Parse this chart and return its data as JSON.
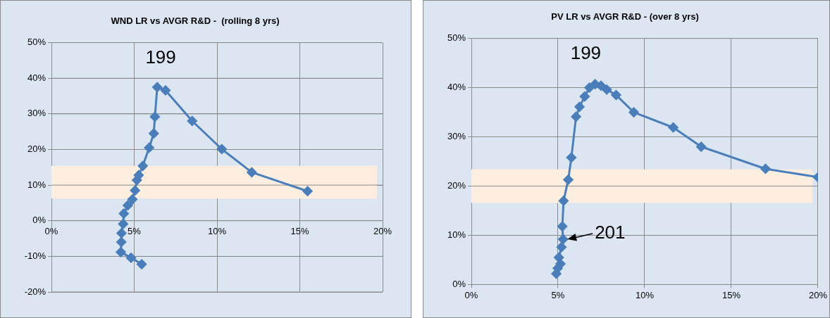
{
  "chart_data": [
    {
      "type": "line",
      "title": "WND LR vs AVGR R&D -  (rolling 8 yrs)",
      "x": [
        5.45,
        4.81,
        4.19,
        4.22,
        4.23,
        4.33,
        4.37,
        4.61,
        4.89,
        5.05,
        5.16,
        5.27,
        5.52,
        5.9,
        6.18,
        6.25,
        6.39,
        6.89,
        8.5,
        10.29,
        12.1,
        15.47
      ],
      "series": [
        {
          "color": "#4a7ebb",
          "values": [
            -12.2,
            -10.4,
            -8.8,
            -6.0,
            -3.5,
            -0.9,
            2.0,
            4.3,
            6.0,
            8.5,
            11.4,
            12.8,
            15.4,
            20.5,
            24.5,
            29.2,
            37.5,
            36.6,
            28.0,
            20.1,
            13.6,
            8.3
          ]
        }
      ],
      "xlim": [
        0,
        20
      ],
      "ylim": [
        -20,
        50
      ],
      "xticks": [
        {
          "value": 0,
          "label": "0%"
        },
        {
          "value": 5,
          "label": "5%"
        },
        {
          "value": 10,
          "label": "10%"
        },
        {
          "value": 15,
          "label": "15%"
        },
        {
          "value": 20,
          "label": "20%"
        }
      ],
      "yticks": [
        {
          "value": -20,
          "label": "-20%"
        },
        {
          "value": -10,
          "label": "-10%"
        },
        {
          "value": 0,
          "label": "0%"
        },
        {
          "value": 10,
          "label": "10%"
        },
        {
          "value": 20,
          "label": "20%"
        },
        {
          "value": 30,
          "label": "30%"
        },
        {
          "value": 40,
          "label": "40%"
        },
        {
          "value": 50,
          "label": "50%"
        }
      ],
      "grid": true,
      "marker": "diamond",
      "bands": [
        {
          "axis": "y",
          "from": 6.2,
          "to": 15.4,
          "color": "#fdeee0"
        }
      ],
      "annotations": [
        "199"
      ]
    },
    {
      "type": "line",
      "title": "PV LR vs AVGR R&D - (over 8 yrs)",
      "x": [
        4.9,
        4.98,
        5.14,
        5.05,
        5.2,
        5.29,
        5.25,
        5.32,
        5.59,
        5.77,
        6.04,
        6.24,
        6.54,
        6.81,
        7.14,
        7.48,
        7.81,
        8.35,
        9.37,
        11.65,
        13.26,
        16.97,
        20.0
      ],
      "series": [
        {
          "color": "#4a7ebb",
          "values": [
            2.2,
            3.3,
            4.2,
            5.5,
            7.6,
            9.2,
            11.8,
            17.0,
            21.3,
            25.8,
            34.1,
            36.1,
            38.2,
            40.0,
            40.7,
            40.4,
            39.6,
            38.5,
            35.0,
            31.9,
            28.0,
            23.5,
            21.8
          ]
        }
      ],
      "xlim": [
        0,
        20
      ],
      "ylim": [
        0,
        50
      ],
      "xticks": [
        {
          "value": 0,
          "label": "0%"
        },
        {
          "value": 5,
          "label": "5%"
        },
        {
          "value": 10,
          "label": "10%"
        },
        {
          "value": 15,
          "label": "15%"
        },
        {
          "value": 20,
          "label": "20%"
        }
      ],
      "yticks": [
        {
          "value": 0,
          "label": "0%"
        },
        {
          "value": 10,
          "label": "10%"
        },
        {
          "value": 20,
          "label": "20%"
        },
        {
          "value": 30,
          "label": "30%"
        },
        {
          "value": 40,
          "label": "40%"
        },
        {
          "value": 50,
          "label": "50%"
        }
      ],
      "grid": true,
      "marker": "diamond",
      "bands": [
        {
          "axis": "y",
          "from": 16.6,
          "to": 23.4,
          "color": "#fdeee0"
        }
      ],
      "annotations": [
        "199",
        {
          "text": "201",
          "x": 5.29,
          "y": 9.2
        }
      ]
    }
  ]
}
